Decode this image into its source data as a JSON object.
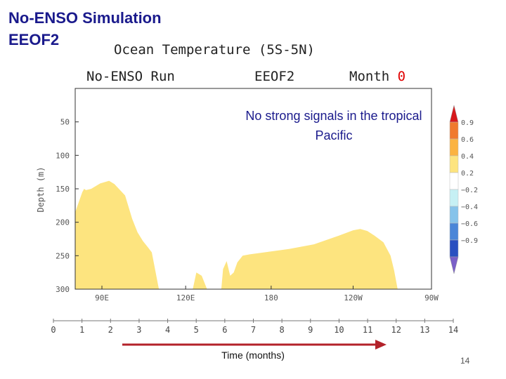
{
  "slide": {
    "title_line1": "No-ENSO Simulation",
    "title_line2": "EEOF2",
    "page_number": "14"
  },
  "plot": {
    "title": "Ocean Temperature (5S-5N)",
    "run_label": "No-ENSO Run",
    "eof_label": "EEOF2",
    "month_label": "Month",
    "month_value": "0",
    "note": "No strong signals in the tropical Pacific",
    "accent_red": "#e00000",
    "fill_color": "#fde47f"
  },
  "chart_data": {
    "type": "area",
    "xlabel": "",
    "ylabel": "Depth (m)",
    "x_ticks": [
      "90E",
      "120E",
      "180",
      "120W",
      "90W"
    ],
    "y_ticks": [
      "50",
      "100",
      "150",
      "200",
      "250",
      "300"
    ],
    "ylim": [
      300,
      0
    ],
    "series": [
      {
        "color": "#fde47f",
        "profile_points": [
          [
            0.0,
            300
          ],
          [
            0.0,
            185
          ],
          [
            0.02,
            155
          ],
          [
            0.025,
            150
          ],
          [
            0.03,
            152
          ],
          [
            0.045,
            150
          ],
          [
            0.07,
            142
          ],
          [
            0.095,
            138
          ],
          [
            0.11,
            143
          ],
          [
            0.14,
            160
          ],
          [
            0.16,
            195
          ],
          [
            0.175,
            215
          ],
          [
            0.19,
            228
          ],
          [
            0.205,
            238
          ],
          [
            0.215,
            245
          ],
          [
            0.235,
            300
          ],
          [
            0.33,
            300
          ],
          [
            0.34,
            275
          ],
          [
            0.355,
            280
          ],
          [
            0.37,
            300
          ],
          [
            0.41,
            300
          ],
          [
            0.415,
            270
          ],
          [
            0.425,
            258
          ],
          [
            0.435,
            280
          ],
          [
            0.445,
            275
          ],
          [
            0.455,
            260
          ],
          [
            0.47,
            250
          ],
          [
            0.49,
            248
          ],
          [
            0.53,
            245
          ],
          [
            0.6,
            240
          ],
          [
            0.67,
            233
          ],
          [
            0.74,
            220
          ],
          [
            0.78,
            212
          ],
          [
            0.8,
            210
          ],
          [
            0.82,
            213
          ],
          [
            0.84,
            220
          ],
          [
            0.865,
            230
          ],
          [
            0.885,
            250
          ],
          [
            0.895,
            272
          ],
          [
            0.905,
            300
          ]
        ]
      }
    ],
    "colorbar": {
      "labels": [
        "0.9",
        "0.6",
        "0.4",
        "0.2",
        "-0.2",
        "-0.4",
        "-0.6",
        "-0.9"
      ],
      "colors": [
        "#d7191c",
        "#f07a2e",
        "#fbb341",
        "#fde47f",
        "#ffffff",
        "#c6f0f4",
        "#86c3ea",
        "#4a86d8",
        "#2a4fc0",
        "#7a5fc8"
      ]
    },
    "timeline": {
      "label": "Time (months)",
      "ticks": [
        "0",
        "1",
        "2",
        "3",
        "4",
        "5",
        "6",
        "7",
        "8",
        "9",
        "10",
        "11",
        "12",
        "13",
        "14"
      ],
      "arrow_color": "#b3222a"
    }
  }
}
